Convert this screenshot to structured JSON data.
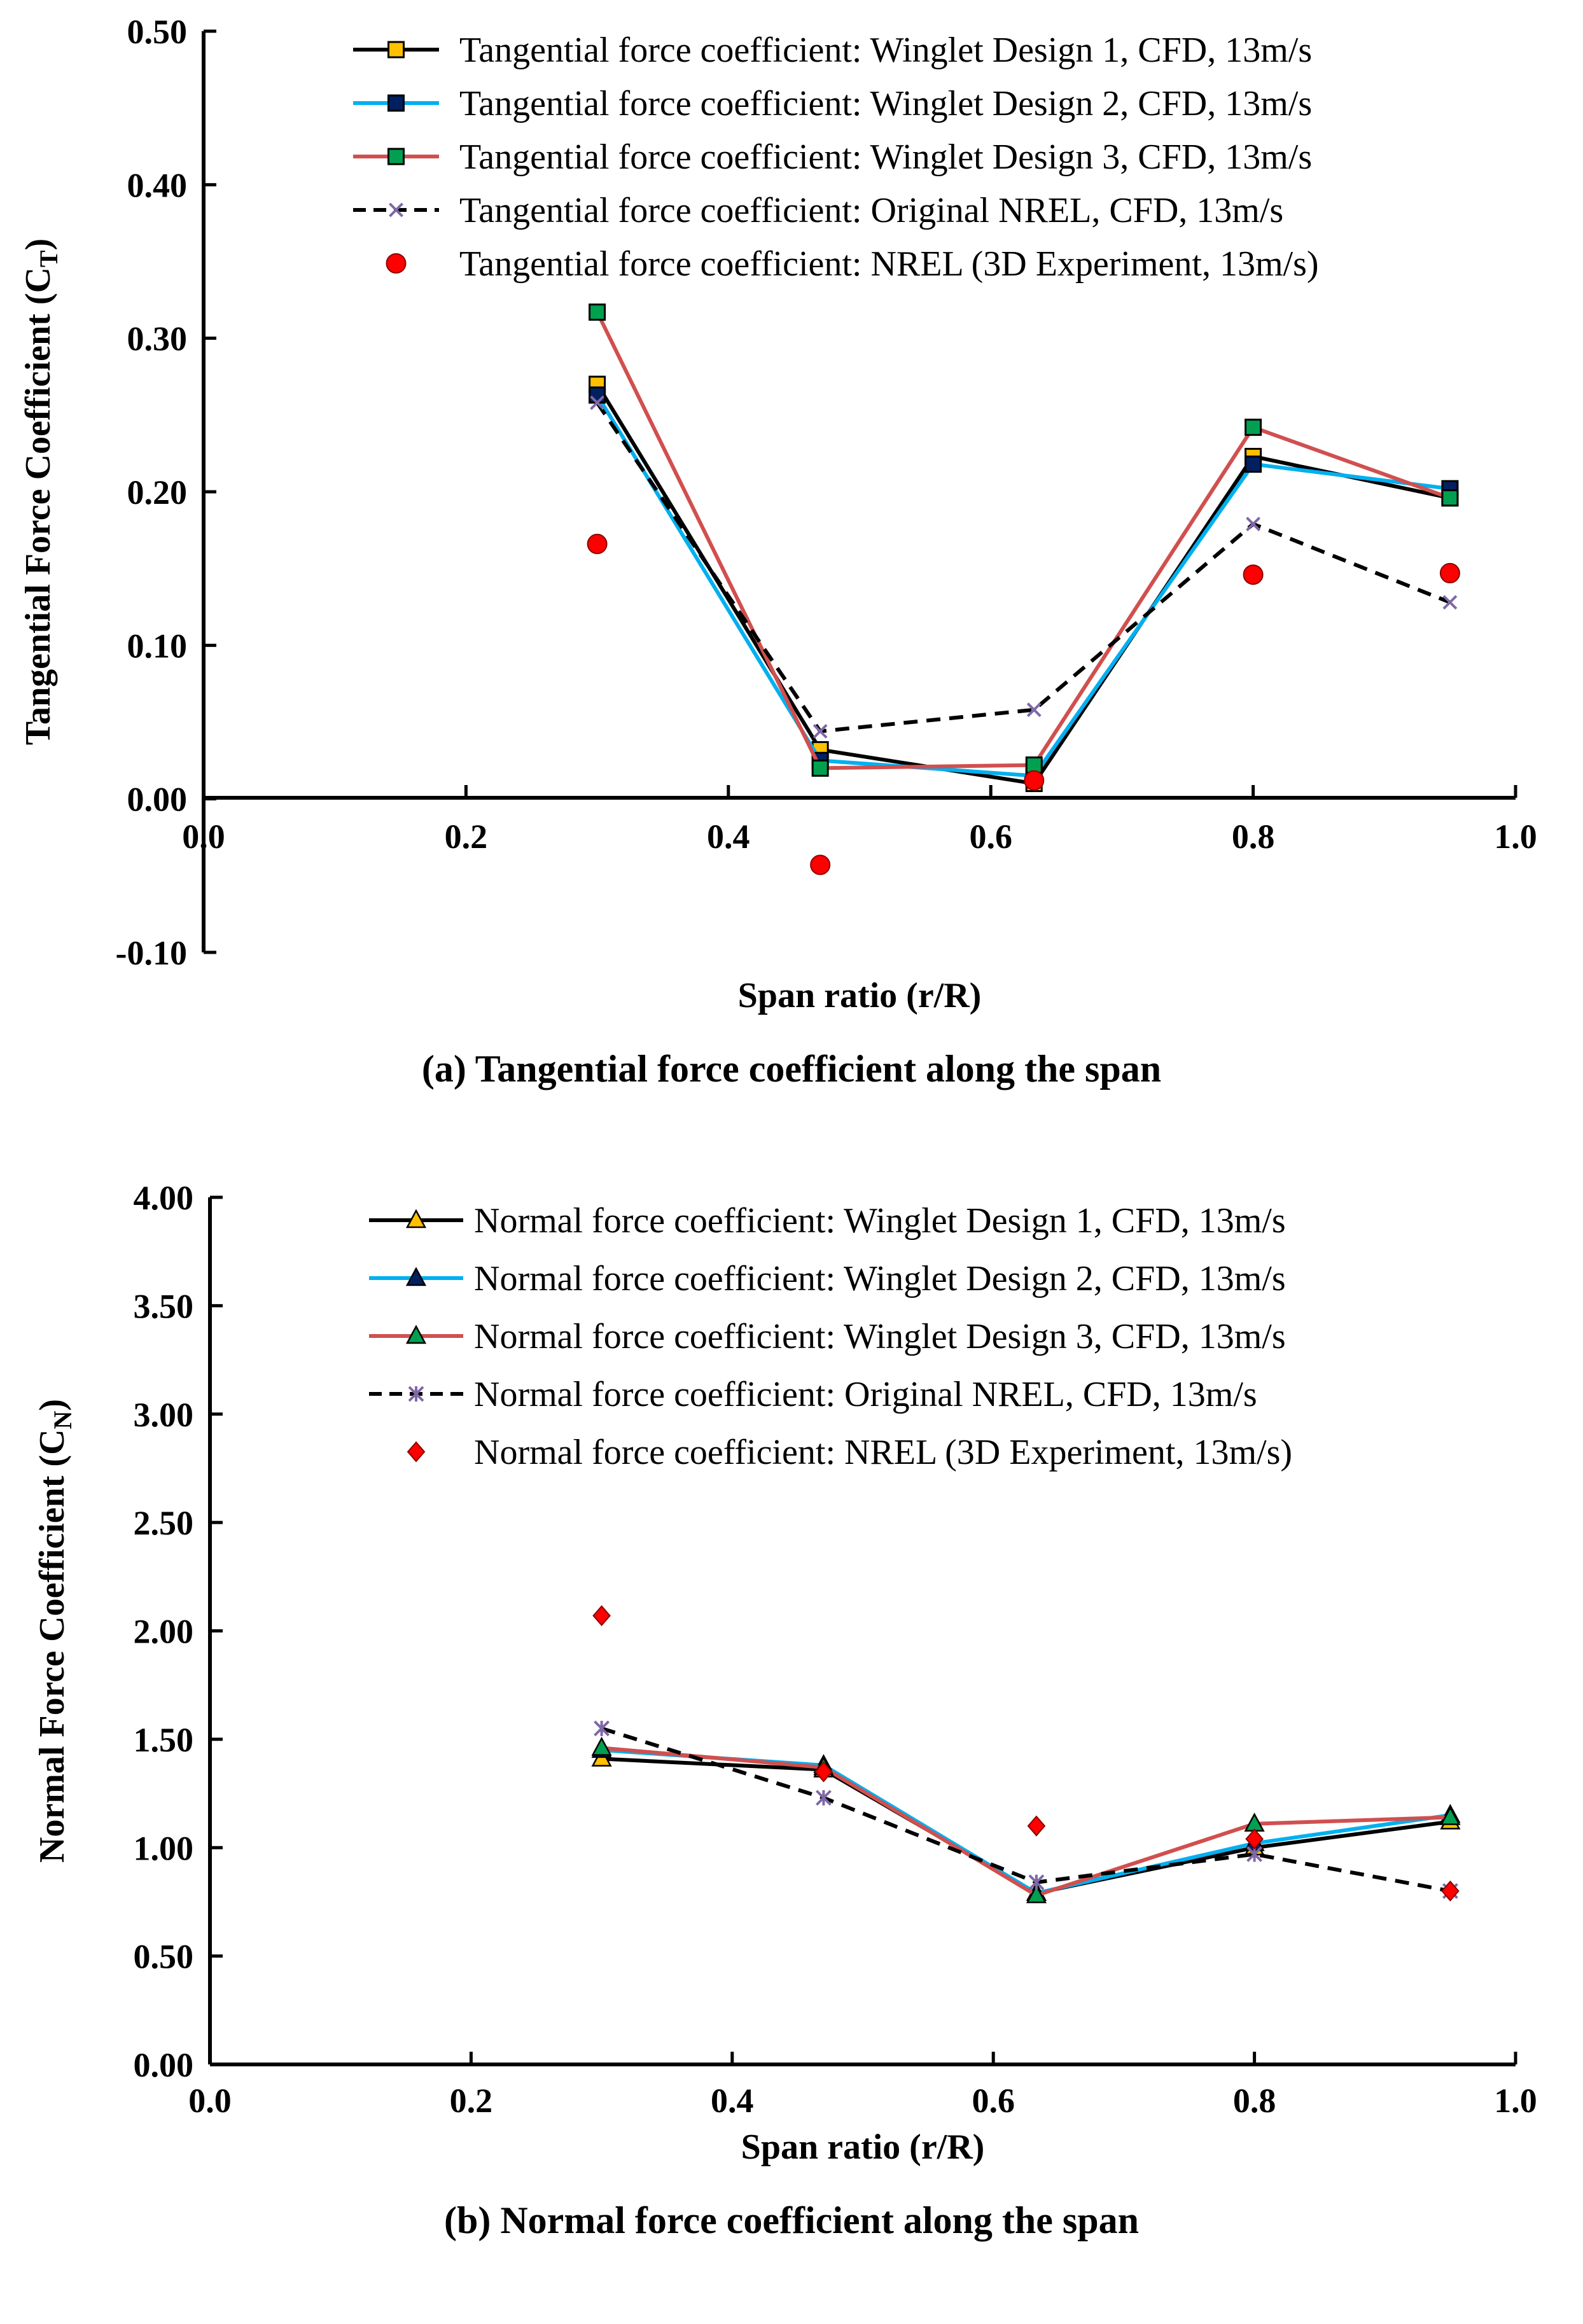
{
  "chart_data": [
    {
      "type": "line",
      "caption": "(a) Tangential force coefficient along the span",
      "xlabel": "Span ratio (r/R)",
      "ylabel": "Tangential Force Coefficient (C",
      "ylabel_sub": "T",
      "ylabel_close": ")",
      "xlim": [
        0.0,
        1.0
      ],
      "ylim": [
        -0.1,
        0.5
      ],
      "x_ticks": [
        0.0,
        0.2,
        0.4,
        0.6,
        0.8,
        1.0
      ],
      "x_tick_labels": [
        "0.0",
        "0.2",
        "0.4",
        "0.6",
        "0.8",
        "1.0"
      ],
      "y_ticks": [
        -0.1,
        0.0,
        0.1,
        0.2,
        0.3,
        0.4,
        0.5
      ],
      "y_tick_labels": [
        "-0.10",
        "0.00",
        "0.10",
        "0.20",
        "0.30",
        "0.40",
        "0.50"
      ],
      "legend_position": "top-right",
      "series": [
        {
          "name": "Tangential force coefficient: Winglet Design 1, CFD, 13m/s",
          "x": [
            0.3,
            0.47,
            0.633,
            0.8,
            0.95
          ],
          "y": [
            0.27,
            0.032,
            0.01,
            0.223,
            0.196
          ],
          "line_color": "#000000",
          "marker": "square",
          "marker_fill": "#ffc000",
          "dash": "solid"
        },
        {
          "name": "Tangential force coefficient: Winglet Design 2, CFD, 13m/s",
          "x": [
            0.3,
            0.47,
            0.633,
            0.8,
            0.95
          ],
          "y": [
            0.263,
            0.025,
            0.015,
            0.218,
            0.202
          ],
          "line_color": "#00b0f0",
          "marker": "square",
          "marker_fill": "#002060",
          "dash": "solid"
        },
        {
          "name": "Tangential force coefficient: Winglet Design 3, CFD, 13m/s",
          "x": [
            0.3,
            0.47,
            0.633,
            0.8,
            0.95
          ],
          "y": [
            0.317,
            0.02,
            0.022,
            0.242,
            0.196
          ],
          "line_color": "#d0504f",
          "marker": "square",
          "marker_fill": "#00a050",
          "dash": "solid"
        },
        {
          "name": "Tangential force coefficient: Original NREL, CFD, 13m/s",
          "x": [
            0.3,
            0.47,
            0.633,
            0.8,
            0.95
          ],
          "y": [
            0.258,
            0.044,
            0.058,
            0.179,
            0.128
          ],
          "line_color": "#000000",
          "marker": "cross",
          "marker_fill": "#7f68a6",
          "dash": "dashed"
        },
        {
          "name": "Tangential force coefficient: NREL (3D Experiment, 13m/s)",
          "x": [
            0.3,
            0.47,
            0.633,
            0.8,
            0.95
          ],
          "y": [
            0.166,
            -0.043,
            0.012,
            0.146,
            0.147
          ],
          "line_color": "none",
          "marker": "circle",
          "marker_fill": "#ff0000",
          "dash": "none"
        }
      ]
    },
    {
      "type": "line",
      "caption": "(b) Normal force coefficient along the span",
      "xlabel": "Span ratio (r/R)",
      "ylabel": "Normal Force Coefficient (C",
      "ylabel_sub": "N",
      "ylabel_close": ")",
      "xlim": [
        0.0,
        1.0
      ],
      "ylim": [
        0.0,
        4.0
      ],
      "x_ticks": [
        0.0,
        0.2,
        0.4,
        0.6,
        0.8,
        1.0
      ],
      "x_tick_labels": [
        "0.0",
        "0.2",
        "0.4",
        "0.6",
        "0.8",
        "1.0"
      ],
      "y_ticks": [
        0.0,
        0.5,
        1.0,
        1.5,
        2.0,
        2.5,
        3.0,
        3.5,
        4.0
      ],
      "y_tick_labels": [
        "0.00",
        "0.50",
        "1.00",
        "1.50",
        "2.00",
        "2.50",
        "3.00",
        "3.50",
        "4.00"
      ],
      "legend_position": "top-right",
      "series": [
        {
          "name": "Normal force coefficient: Winglet Design 1, CFD, 13m/s",
          "x": [
            0.3,
            0.47,
            0.633,
            0.8,
            0.95
          ],
          "y": [
            1.41,
            1.36,
            0.79,
            1.0,
            1.12
          ],
          "line_color": "#000000",
          "marker": "triangle",
          "marker_fill": "#ffc000",
          "dash": "solid"
        },
        {
          "name": "Normal force coefficient: Winglet Design 2, CFD, 13m/s",
          "x": [
            0.3,
            0.47,
            0.633,
            0.8,
            0.95
          ],
          "y": [
            1.45,
            1.38,
            0.79,
            1.02,
            1.15
          ],
          "line_color": "#00b0f0",
          "marker": "triangle",
          "marker_fill": "#002060",
          "dash": "solid"
        },
        {
          "name": "Normal force coefficient: Winglet Design 3, CFD, 13m/s",
          "x": [
            0.3,
            0.47,
            0.633,
            0.8,
            0.95
          ],
          "y": [
            1.46,
            1.37,
            0.78,
            1.11,
            1.14
          ],
          "line_color": "#d0504f",
          "marker": "triangle",
          "marker_fill": "#00a050",
          "dash": "solid"
        },
        {
          "name": "Normal force coefficient: Original NREL, CFD, 13m/s",
          "x": [
            0.3,
            0.47,
            0.633,
            0.8,
            0.95
          ],
          "y": [
            1.55,
            1.23,
            0.84,
            0.97,
            0.8
          ],
          "line_color": "#000000",
          "marker": "asterisk",
          "marker_fill": "#7f68a6",
          "dash": "dashed"
        },
        {
          "name": "Normal force coefficient: NREL (3D Experiment, 13m/s)",
          "x": [
            0.3,
            0.47,
            0.633,
            0.8,
            0.95
          ],
          "y": [
            2.07,
            1.35,
            1.1,
            1.04,
            0.8
          ],
          "line_color": "none",
          "marker": "diamond",
          "marker_fill": "#ff0000",
          "dash": "none"
        }
      ]
    }
  ]
}
